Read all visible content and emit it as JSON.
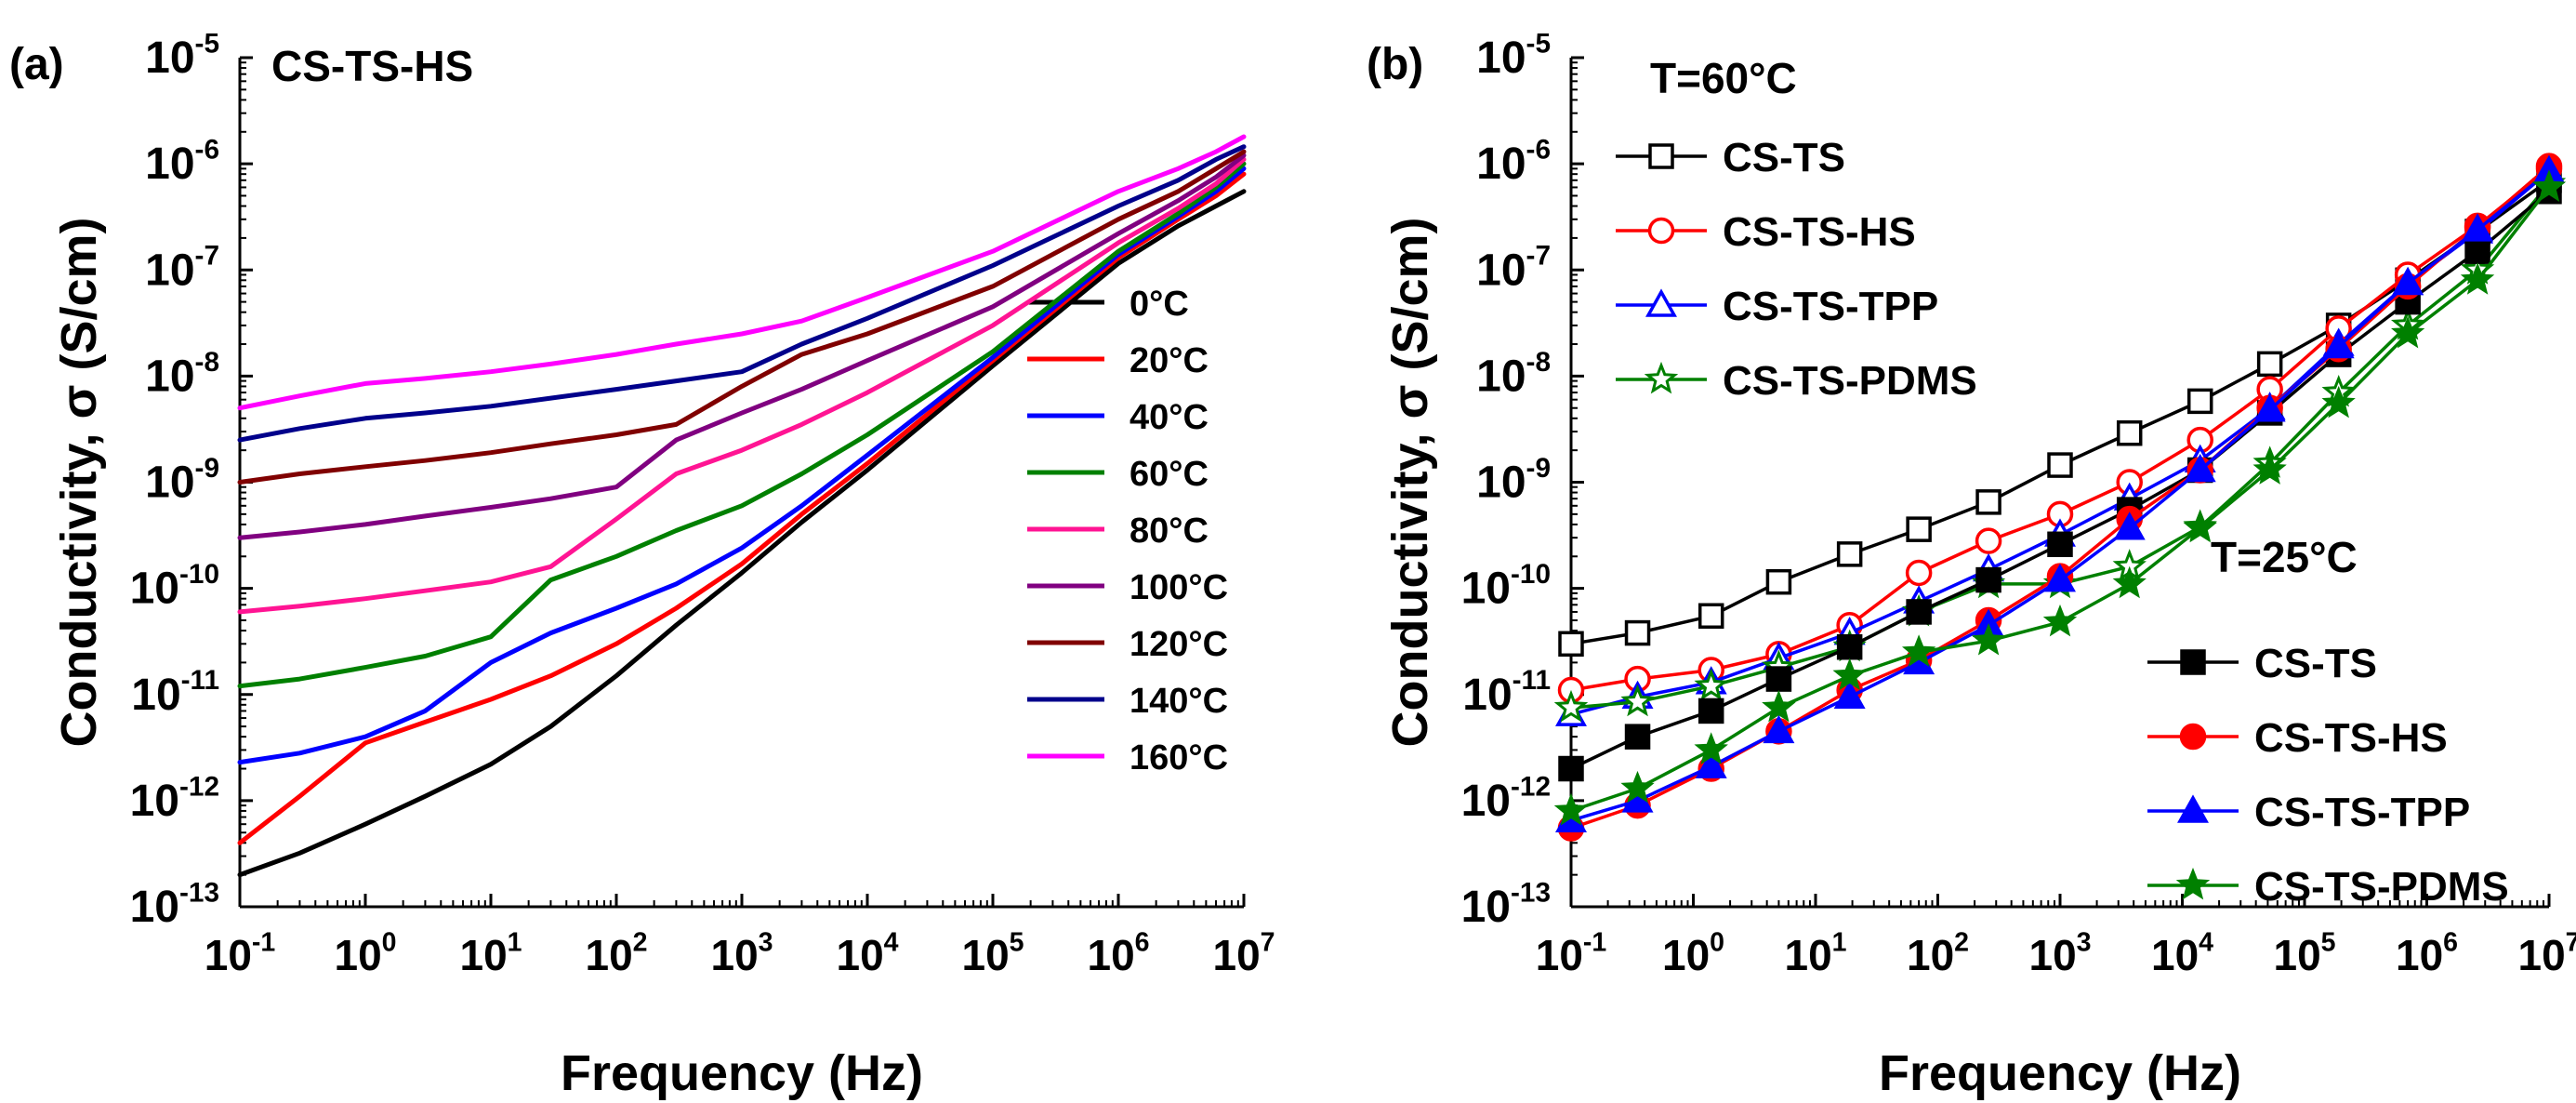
{
  "chart_data": [
    {
      "id": "a",
      "panel_label": "(a)",
      "type": "line",
      "title": "CS-TS-HS",
      "xlabel": "Frequency (Hz)",
      "ylabel": "Conductivity, σ (S/cm)",
      "xscale": "log",
      "yscale": "log",
      "xlim_exp": [
        -1,
        7
      ],
      "ylim_exp": [
        -13,
        -5
      ],
      "x_ticks": [
        "-1",
        "0",
        "1",
        "2",
        "3",
        "4",
        "5",
        "6",
        "7"
      ],
      "y_ticks": [
        "-13",
        "-12",
        "-11",
        "-10",
        "-9",
        "-8",
        "-7",
        "-6",
        "-5"
      ],
      "legend_position": "center-right",
      "x": [
        0.1,
        0.3,
        1,
        3,
        10,
        30,
        100,
        300,
        1000,
        3000,
        10000,
        100000,
        1000000,
        3000000,
        6000000,
        10000000
      ],
      "series": [
        {
          "name": "0°C",
          "color": "#000000",
          "values": [
            2e-13,
            3.2e-13,
            6e-13,
            1.1e-12,
            2.2e-12,
            5e-12,
            1.5e-11,
            4.5e-11,
            1.4e-10,
            4.2e-10,
            1.3e-09,
            1.25e-08,
            1.15e-07,
            2.6e-07,
            4e-07,
            5.5e-07
          ]
        },
        {
          "name": "20°C",
          "color": "#ff0000",
          "values": [
            4e-13,
            1.1e-12,
            3.5e-12,
            5.5e-12,
            9e-12,
            1.5e-11,
            3e-11,
            6.5e-11,
            1.7e-10,
            5e-10,
            1.5e-09,
            1.4e-08,
            1.3e-07,
            3e-07,
            5e-07,
            8e-07
          ]
        },
        {
          "name": "40°C",
          "color": "#0000ff",
          "values": [
            2.3e-12,
            2.8e-12,
            4e-12,
            7e-12,
            2e-11,
            3.8e-11,
            6.5e-11,
            1.1e-10,
            2.4e-10,
            6e-10,
            1.8e-09,
            1.5e-08,
            1.4e-07,
            3.2e-07,
            5.5e-07,
            9e-07
          ]
        },
        {
          "name": "60°C",
          "color": "#008000",
          "values": [
            1.2e-11,
            1.4e-11,
            1.8e-11,
            2.3e-11,
            3.5e-11,
            1.2e-10,
            2e-10,
            3.5e-10,
            6e-10,
            1.2e-09,
            2.8e-09,
            1.7e-08,
            1.5e-07,
            3.4e-07,
            6e-07,
            1e-06
          ]
        },
        {
          "name": "80°C",
          "color": "#ff1493",
          "values": [
            6e-11,
            6.8e-11,
            8e-11,
            9.5e-11,
            1.15e-10,
            1.6e-10,
            4.5e-10,
            1.2e-09,
            2e-09,
            3.5e-09,
            7e-09,
            3e-08,
            1.8e-07,
            3.8e-07,
            6.5e-07,
            1.1e-06
          ]
        },
        {
          "name": "100°C",
          "color": "#800080",
          "values": [
            3e-10,
            3.4e-10,
            4e-10,
            4.8e-10,
            5.8e-10,
            7e-10,
            9e-10,
            2.5e-09,
            4.5e-09,
            7.5e-09,
            1.4e-08,
            4.5e-08,
            2.2e-07,
            4.5e-07,
            7.5e-07,
            1.2e-06
          ]
        },
        {
          "name": "120°C",
          "color": "#800000",
          "values": [
            1e-09,
            1.2e-09,
            1.4e-09,
            1.6e-09,
            1.9e-09,
            2.3e-09,
            2.8e-09,
            3.5e-09,
            8e-09,
            1.6e-08,
            2.5e-08,
            7e-08,
            3e-07,
            5.5e-07,
            9e-07,
            1.3e-06
          ]
        },
        {
          "name": "140°C",
          "color": "#00008b",
          "values": [
            2.5e-09,
            3.2e-09,
            4e-09,
            4.5e-09,
            5.2e-09,
            6.2e-09,
            7.5e-09,
            9e-09,
            1.1e-08,
            2e-08,
            3.5e-08,
            1.1e-07,
            4e-07,
            7e-07,
            1.1e-06,
            1.45e-06
          ]
        },
        {
          "name": "160°C",
          "color": "#ff00ff",
          "values": [
            5e-09,
            6.5e-09,
            8.5e-09,
            9.5e-09,
            1.1e-08,
            1.3e-08,
            1.6e-08,
            2e-08,
            2.5e-08,
            3.3e-08,
            5.5e-08,
            1.5e-07,
            5.5e-07,
            9e-07,
            1.3e-06,
            1.8e-06
          ]
        }
      ]
    },
    {
      "id": "b",
      "panel_label": "(b)",
      "type": "line",
      "title": "",
      "xlabel": "Frequency (Hz)",
      "ylabel": "Conductivity, σ (S/cm)",
      "xscale": "log",
      "yscale": "log",
      "xlim_exp": [
        -1,
        7
      ],
      "ylim_exp": [
        -13,
        -5
      ],
      "x_ticks": [
        "-1",
        "0",
        "1",
        "2",
        "3",
        "4",
        "5",
        "6",
        "7"
      ],
      "y_ticks": [
        "-13",
        "-12",
        "-11",
        "-10",
        "-9",
        "-8",
        "-7",
        "-6",
        "-5"
      ],
      "annotations": [
        "T=60°C",
        "T=25°C"
      ],
      "legend_positions": [
        "top-left",
        "bottom-right"
      ],
      "x": [
        0.1,
        0.35,
        1.4,
        5,
        19,
        70,
        260,
        1000,
        3700,
        14000,
        52000,
        190000,
        700000,
        2600000,
        10000000
      ],
      "series": [
        {
          "name": "CS-TS",
          "group": "T=60°C",
          "marker": "square",
          "filled": false,
          "color": "#000000",
          "values": [
            3e-11,
            3.8e-11,
            5.5e-11,
            1.15e-10,
            2.1e-10,
            3.6e-10,
            6.5e-10,
            1.45e-09,
            2.9e-09,
            5.8e-09,
            1.3e-08,
            3e-08,
            8e-08,
            2.3e-07,
            7e-07
          ]
        },
        {
          "name": "CS-TS-HS",
          "group": "T=60°C",
          "marker": "circle",
          "filled": false,
          "color": "#ff0000",
          "values": [
            1.1e-11,
            1.4e-11,
            1.7e-11,
            2.4e-11,
            4.5e-11,
            1.4e-10,
            2.8e-10,
            5e-10,
            1e-09,
            2.5e-09,
            7.5e-09,
            2.8e-08,
            9e-08,
            2.6e-07,
            9e-07
          ]
        },
        {
          "name": "CS-TS-TPP",
          "group": "T=60°C",
          "marker": "triangle",
          "filled": false,
          "color": "#0000ff",
          "values": [
            6.5e-12,
            9.5e-12,
            1.3e-11,
            2.2e-11,
            3.8e-11,
            7.5e-11,
            1.5e-10,
            3.2e-10,
            7e-10,
            1.6e-09,
            5e-09,
            2e-08,
            7.5e-08,
            2.3e-07,
            8.5e-07
          ]
        },
        {
          "name": "CS-TS-PDMS",
          "group": "T=60°C",
          "marker": "star",
          "filled": false,
          "color": "#008000",
          "values": [
            7.5e-12,
            8.5e-12,
            1.2e-11,
            1.8e-11,
            2.8e-11,
            6e-11,
            1.1e-10,
            1.1e-10,
            1.6e-10,
            3.8e-10,
            1.5e-09,
            7e-09,
            3e-08,
            1e-07,
            6.5e-07
          ]
        },
        {
          "name": "CS-TS",
          "group": "T=25°C",
          "marker": "square",
          "filled": true,
          "color": "#000000",
          "values": [
            2e-12,
            4e-12,
            7e-12,
            1.4e-11,
            2.8e-11,
            6e-11,
            1.2e-10,
            2.6e-10,
            5.5e-10,
            1.3e-09,
            4.5e-09,
            1.6e-08,
            5e-08,
            1.5e-07,
            5.5e-07
          ]
        },
        {
          "name": "CS-TS-HS",
          "group": "T=25°C",
          "marker": "circle",
          "filled": true,
          "color": "#ff0000",
          "values": [
            5.5e-13,
            9e-13,
            2e-12,
            4.5e-12,
            1.1e-11,
            2.1e-11,
            5e-11,
            1.3e-10,
            4.5e-10,
            1.3e-09,
            5e-09,
            1.8e-08,
            7e-08,
            2.5e-07,
            9.5e-07
          ]
        },
        {
          "name": "CS-TS-TPP",
          "group": "T=25°C",
          "marker": "triangle",
          "filled": true,
          "color": "#0000ff",
          "values": [
            6.5e-13,
            1e-12,
            2.1e-12,
            4.5e-12,
            9.5e-12,
            2e-11,
            4.5e-11,
            1.2e-10,
            3.7e-10,
            1.3e-09,
            4.8e-09,
            1.9e-08,
            7.5e-08,
            2.4e-07,
            8.5e-07
          ]
        },
        {
          "name": "CS-TS-PDMS",
          "group": "T=25°C",
          "marker": "star",
          "filled": true,
          "color": "#008000",
          "values": [
            8e-13,
            1.3e-12,
            3e-12,
            7.5e-12,
            1.5e-11,
            2.5e-11,
            3.2e-11,
            4.8e-11,
            1.1e-10,
            3.7e-10,
            1.3e-09,
            5.5e-09,
            2.5e-08,
            8e-08,
            6e-07
          ]
        }
      ]
    }
  ]
}
